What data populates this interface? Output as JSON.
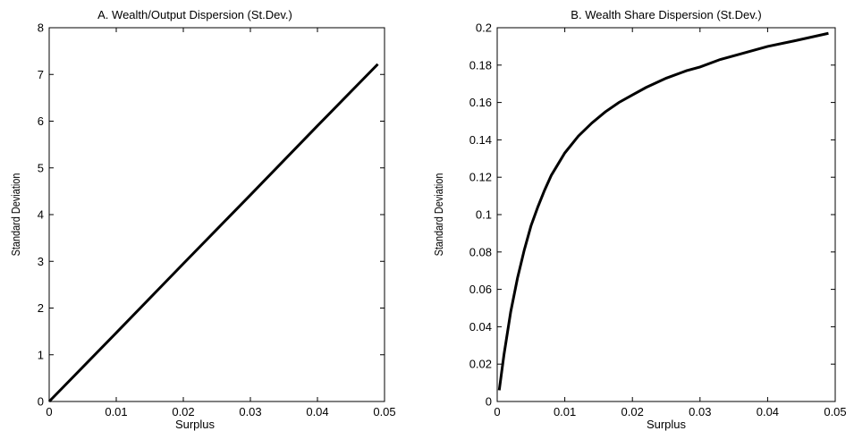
{
  "chart_data": [
    {
      "type": "line",
      "title": "A. Wealth/Output Dispersion (St.Dev.)",
      "xlabel": "Surplus",
      "ylabel": "Standard Deviation",
      "xlim": [
        0,
        0.05
      ],
      "ylim": [
        0,
        8
      ],
      "x_ticks": [
        "0",
        "0.01",
        "0.02",
        "0.03",
        "0.04",
        "0.05"
      ],
      "y_ticks": [
        "0",
        "1",
        "2",
        "3",
        "4",
        "5",
        "6",
        "7",
        "8"
      ],
      "grid": false,
      "series": [
        {
          "x": [
            0,
            0.01,
            0.02,
            0.03,
            0.04,
            0.049
          ],
          "y": [
            0,
            1.47,
            2.95,
            4.42,
            5.9,
            7.22
          ],
          "color": "#000000"
        }
      ]
    },
    {
      "type": "line",
      "title": "B. Wealth Share Dispersion (St.Dev.)",
      "xlabel": "Surplus",
      "ylabel": "Standard Deviation",
      "xlim": [
        0,
        0.05
      ],
      "ylim": [
        0,
        0.2
      ],
      "x_ticks": [
        "0",
        "0.01",
        "0.02",
        "0.03",
        "0.04",
        "0.05"
      ],
      "y_ticks": [
        "0",
        "0.02",
        "0.04",
        "0.06",
        "0.08",
        "0.1",
        "0.12",
        "0.14",
        "0.16",
        "0.18",
        "0.2"
      ],
      "grid": false,
      "series": [
        {
          "x": [
            0.0003,
            0.001,
            0.002,
            0.003,
            0.004,
            0.005,
            0.006,
            0.007,
            0.008,
            0.009,
            0.01,
            0.012,
            0.014,
            0.016,
            0.018,
            0.02,
            0.022,
            0.025,
            0.028,
            0.03,
            0.033,
            0.036,
            0.04,
            0.044,
            0.049
          ],
          "y": [
            0.006,
            0.025,
            0.048,
            0.066,
            0.081,
            0.094,
            0.104,
            0.113,
            0.121,
            0.127,
            0.133,
            0.142,
            0.149,
            0.155,
            0.16,
            0.164,
            0.168,
            0.173,
            0.177,
            0.179,
            0.183,
            0.186,
            0.19,
            0.193,
            0.197
          ],
          "color": "#000000"
        }
      ]
    }
  ]
}
